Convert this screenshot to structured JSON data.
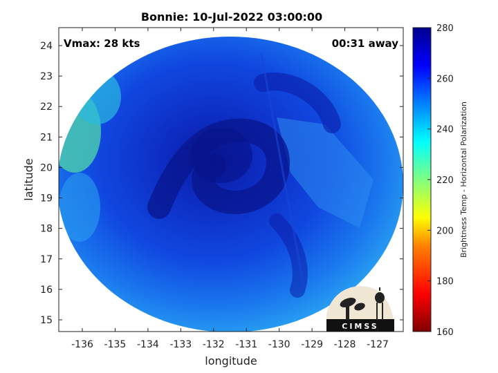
{
  "title": "Bonnie: 10-Jul-2022 03:00:00",
  "annotations": {
    "vmax": "Vmax: 28 kts",
    "time_away": "00:31 away"
  },
  "map": {
    "xlabel": "longitude",
    "ylabel": "latitude",
    "x_ticks": [
      "-136",
      "-135",
      "-134",
      "-133",
      "-132",
      "-131",
      "-130",
      "-129",
      "-128",
      "-127"
    ],
    "y_ticks": [
      "15",
      "16",
      "17",
      "18",
      "19",
      "20",
      "21",
      "22",
      "23",
      "24"
    ]
  },
  "colorbar": {
    "label": "Brightness Temp - Horizontal Polarization",
    "ticks": [
      "160",
      "180",
      "200",
      "220",
      "240",
      "260",
      "280"
    ],
    "range": [
      160,
      280
    ],
    "colormap": [
      "#7f0000",
      "#ff0000",
      "#ff8000",
      "#ffff00",
      "#80ff80",
      "#00ffff",
      "#0080ff",
      "#0000ff",
      "#00008f"
    ]
  },
  "logo": {
    "text": "CIMSS"
  }
}
